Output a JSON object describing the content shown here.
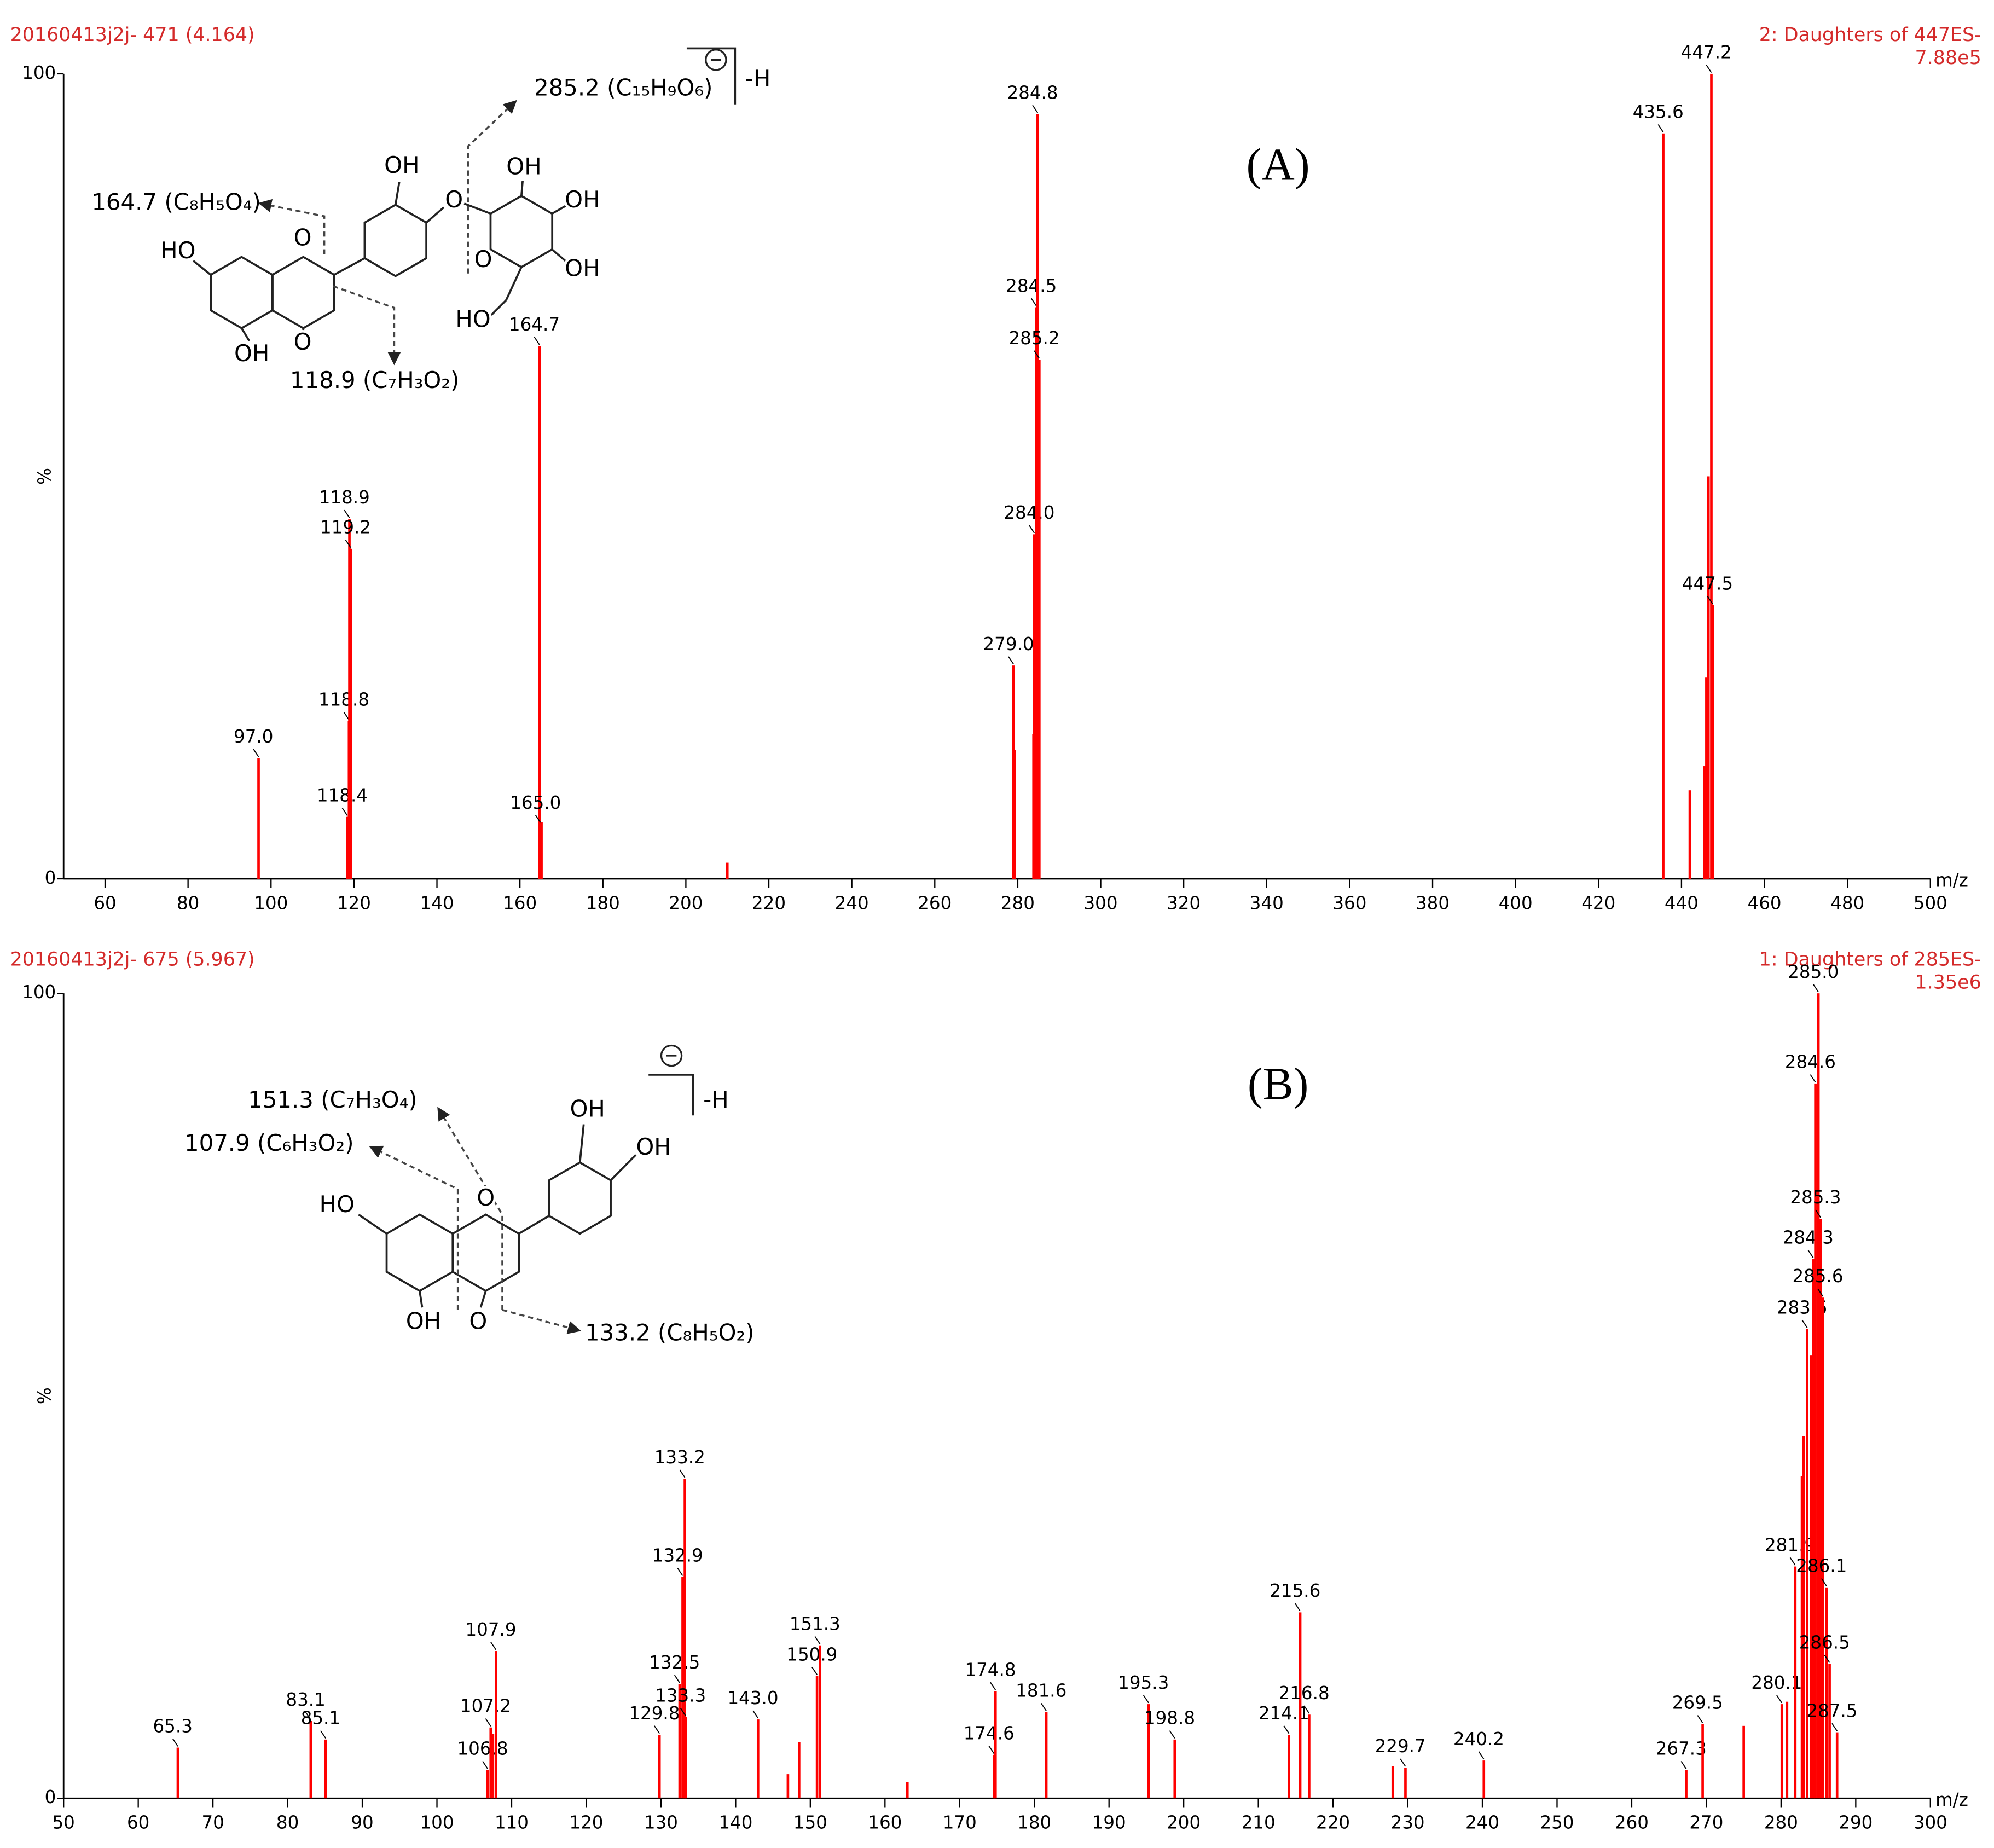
{
  "chart_data": [
    {
      "type": "bar",
      "title": "20160413j2j- 471 (4.164)",
      "function": "2: Daughters of 447ES-",
      "intensity": "7.88e5",
      "panel_label": "(A)",
      "x": [
        97.0,
        118.4,
        118.8,
        118.9,
        119.2,
        164.7,
        165.0,
        165.2,
        210.0,
        279.0,
        279.2,
        283.8,
        284.0,
        284.2,
        284.5,
        284.8,
        285.2,
        435.6,
        442.0,
        445.5,
        446.0,
        446.5,
        447.2,
        447.5
      ],
      "values": [
        15,
        7.7,
        19.6,
        44.7,
        41,
        66.2,
        6.8,
        7,
        2,
        26.5,
        16,
        18,
        42.8,
        36,
        71,
        95,
        64.5,
        92.6,
        11,
        14,
        25,
        50,
        100,
        34
      ],
      "peak_labels": [
        "97.0",
        "118.4",
        "118.8",
        "118.9",
        "119.2",
        "164.7",
        "165.0",
        null,
        null,
        "279.0",
        null,
        null,
        "284.0",
        null,
        "284.5",
        "284.8",
        "285.2",
        "435.6",
        null,
        null,
        null,
        null,
        "447.2",
        "447.5"
      ],
      "color": "#ff0000",
      "xlim": [
        50,
        500
      ],
      "xticks": [
        60,
        80,
        100,
        120,
        140,
        160,
        180,
        200,
        220,
        240,
        260,
        280,
        300,
        320,
        340,
        360,
        380,
        400,
        420,
        440,
        460,
        480,
        500
      ],
      "ylim": [
        0,
        100
      ],
      "yticks": [
        0,
        100
      ],
      "ylabel": "%",
      "xlabel": "m/z",
      "fragments": [
        "285.2 (C₁₅H₉O₆)",
        "164.7 (C₈H₅O₄)",
        "118.9 (C₇H₃O₂)"
      ],
      "atoms": [
        "OH",
        "O",
        "OH",
        "OH",
        "OH",
        "O",
        "HO",
        "HO",
        "O",
        "OH",
        "O"
      ],
      "charge": "-H"
    },
    {
      "type": "bar",
      "title": "20160413j2j- 675 (5.967)",
      "function": "1: Daughters of 285ES-",
      "intensity": "1.35e6",
      "panel_label": "(B)",
      "x": [
        65.3,
        83.1,
        85.1,
        106.8,
        107.2,
        107.5,
        107.9,
        129.8,
        132.5,
        132.9,
        133.2,
        133.3,
        143.0,
        147.0,
        148.5,
        150.9,
        151.3,
        163.0,
        174.6,
        174.8,
        181.6,
        195.3,
        198.8,
        214.1,
        215.6,
        216.8,
        228.0,
        229.7,
        240.2,
        267.3,
        269.5,
        275.0,
        280.1,
        280.8,
        281.9,
        282.8,
        283.0,
        283.5,
        284.0,
        284.3,
        284.6,
        285.0,
        285.3,
        285.6,
        286.1,
        286.5,
        287.5
      ],
      "values": [
        6.3,
        9.6,
        7.3,
        3.5,
        8.8,
        8,
        18.3,
        7.9,
        14.2,
        27.5,
        39.7,
        10.1,
        9.8,
        3,
        7,
        15.2,
        19.0,
        2,
        5.4,
        13.3,
        10.7,
        11.7,
        7.3,
        7.9,
        23.1,
        10.4,
        4,
        3.8,
        4.7,
        3.5,
        9.2,
        9,
        11.7,
        12,
        28.8,
        40,
        45,
        58.3,
        55,
        67.0,
        88.8,
        100,
        72.0,
        62.2,
        26.2,
        16.7,
        8.2
      ],
      "peak_labels": [
        "65.3",
        "83.1",
        "85.1",
        "106.8",
        "107.2",
        null,
        "107.9",
        "129.8",
        "132.5",
        "132.9",
        "133.2",
        "133.3",
        "143.0",
        null,
        null,
        "150.9",
        "151.3",
        null,
        "174.6",
        "174.8",
        "181.6",
        "195.3",
        "198.8",
        "214.1",
        "215.6",
        "216.8",
        null,
        "229.7",
        "240.2",
        "267.3",
        "269.5",
        null,
        "280.1",
        null,
        "281.9",
        null,
        null,
        "283.5",
        null,
        "284.3",
        "284.6",
        "285.0",
        "285.3",
        "285.6",
        "286.1",
        "286.5",
        "287.5"
      ],
      "color": "#ff0000",
      "xlim": [
        50,
        300
      ],
      "xticks": [
        50,
        60,
        70,
        80,
        90,
        100,
        110,
        120,
        130,
        140,
        150,
        160,
        170,
        180,
        190,
        200,
        210,
        220,
        230,
        240,
        250,
        260,
        270,
        280,
        290,
        300
      ],
      "ylim": [
        0,
        100
      ],
      "yticks": [
        0,
        100
      ],
      "ylabel": "%",
      "xlabel": "m/z",
      "fragments": [
        "151.3 (C₇H₃O₄)",
        "107.9 (C₆H₃O₂)",
        "133.2 (C₈H₅O₂)"
      ],
      "atoms": [
        "OH",
        "OH",
        "O",
        "HO",
        "OH",
        "O"
      ],
      "charge": "-H"
    }
  ]
}
